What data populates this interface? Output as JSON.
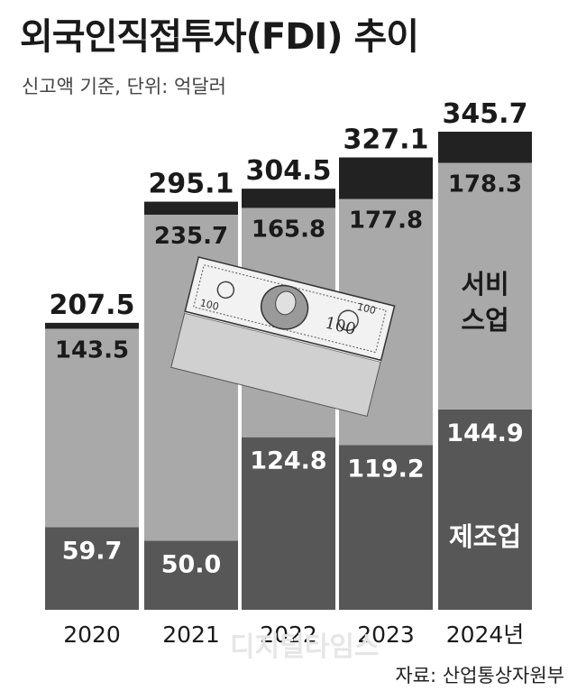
{
  "title": "외국인직접투자(FDI) 추이",
  "subtitle": "신고액 기준, 단위: 억달러",
  "source": "자료: 산업통상자원부",
  "watermark": "디지털타임스",
  "colors": {
    "manufacturing": "#575757",
    "services": "#a9a9a9",
    "other": "#222222",
    "text_dark": "#1a1a1a",
    "text_light": "#ffffff"
  },
  "chart_data": {
    "type": "bar",
    "stacked": true,
    "categories": [
      "2020",
      "2021",
      "2022",
      "2023",
      "2024년"
    ],
    "totals": [
      207.5,
      295.1,
      304.5,
      327.1,
      345.7
    ],
    "series": [
      {
        "name": "제조업",
        "values": [
          59.7,
          50.0,
          124.8,
          119.2,
          144.9
        ]
      },
      {
        "name": "서비스업",
        "values": [
          143.5,
          235.7,
          165.8,
          177.8,
          178.3
        ]
      },
      {
        "name": "",
        "values": [
          4.3,
          9.4,
          13.9,
          30.1,
          22.5
        ]
      }
    ],
    "value_labels": {
      "manufacturing": [
        "59.7",
        "50.0",
        "124.8",
        "119.2",
        "144.9"
      ],
      "services": [
        "143.5",
        "235.7",
        "165.8",
        "177.8",
        "178.3"
      ],
      "totals": [
        "207.5",
        "295.1",
        "304.5",
        "327.1",
        "345.7"
      ]
    },
    "annotations": [
      "서비",
      "스업",
      "제조업"
    ],
    "ylim": [
      0,
      345.7
    ],
    "grid": false
  }
}
